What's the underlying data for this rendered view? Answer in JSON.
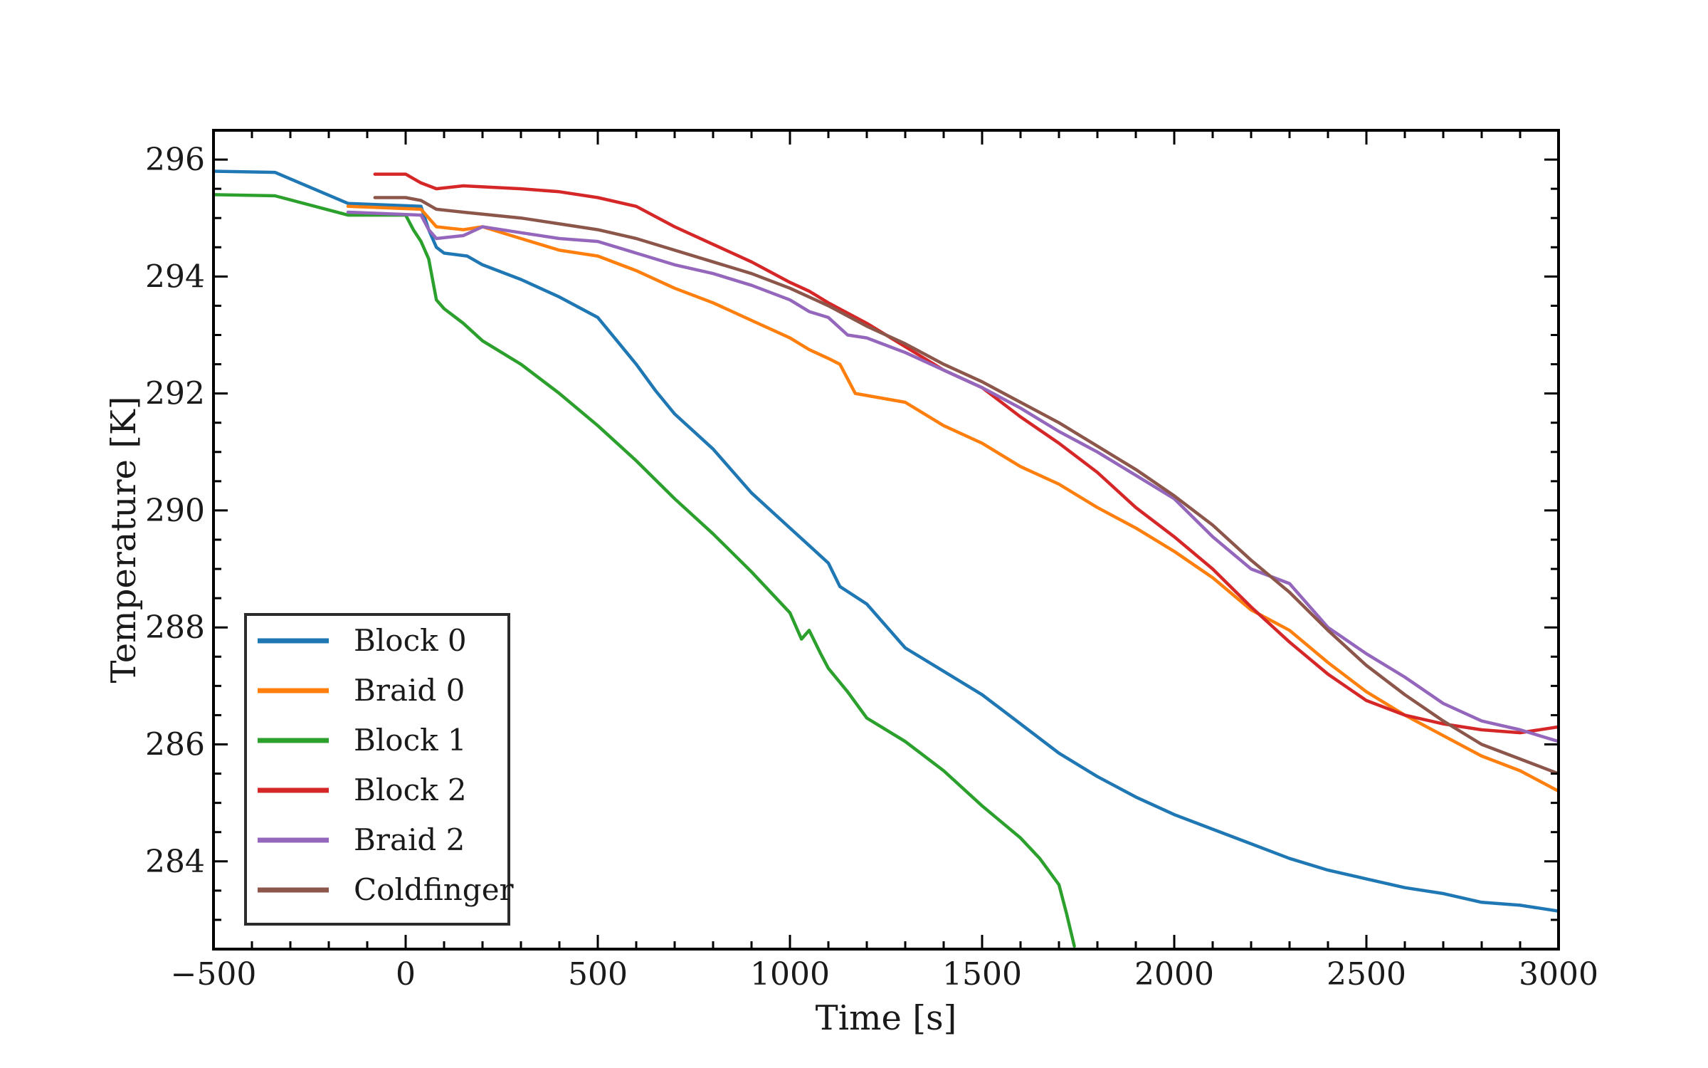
{
  "chart_data": {
    "type": "line",
    "title": "",
    "xlabel": "Time [s]",
    "ylabel": "Temperature [K]",
    "xlim": [
      -500,
      3000
    ],
    "ylim": [
      282.5,
      296.5
    ],
    "x_ticks": [
      -500,
      0,
      500,
      1000,
      1500,
      2000,
      2500,
      3000
    ],
    "x_tick_labels": [
      "−500",
      "0",
      "500",
      "1000",
      "1500",
      "2000",
      "2500",
      "3000"
    ],
    "y_ticks": [
      284,
      286,
      288,
      290,
      292,
      294,
      296
    ],
    "y_tick_labels": [
      "284",
      "286",
      "288",
      "290",
      "292",
      "294",
      "296"
    ],
    "grid": false,
    "legend_position": "bottom-left",
    "series": [
      {
        "name": "Block 0",
        "color": "#1f77b4",
        "points": [
          [
            -500,
            295.8
          ],
          [
            -340,
            295.78
          ],
          [
            -150,
            295.25
          ],
          [
            40,
            295.2
          ],
          [
            60,
            294.8
          ],
          [
            80,
            294.5
          ],
          [
            100,
            294.4
          ],
          [
            160,
            294.35
          ],
          [
            200,
            294.2
          ],
          [
            300,
            293.95
          ],
          [
            400,
            293.65
          ],
          [
            500,
            293.3
          ],
          [
            550,
            292.9
          ],
          [
            600,
            292.5
          ],
          [
            650,
            292.05
          ],
          [
            700,
            291.65
          ],
          [
            800,
            291.05
          ],
          [
            900,
            290.3
          ],
          [
            1000,
            289.7
          ],
          [
            1050,
            289.4
          ],
          [
            1100,
            289.1
          ],
          [
            1130,
            288.7
          ],
          [
            1200,
            288.4
          ],
          [
            1300,
            287.65
          ],
          [
            1400,
            287.25
          ],
          [
            1500,
            286.85
          ],
          [
            1600,
            286.35
          ],
          [
            1700,
            285.85
          ],
          [
            1800,
            285.45
          ],
          [
            1900,
            285.1
          ],
          [
            2000,
            284.8
          ],
          [
            2100,
            284.55
          ],
          [
            2200,
            284.3
          ],
          [
            2300,
            284.05
          ],
          [
            2400,
            283.85
          ],
          [
            2500,
            283.7
          ],
          [
            2600,
            283.55
          ],
          [
            2700,
            283.45
          ],
          [
            2800,
            283.3
          ],
          [
            2900,
            283.25
          ],
          [
            3000,
            283.15
          ]
        ]
      },
      {
        "name": "Braid 0",
        "color": "#ff7f0e",
        "points": [
          [
            -150,
            295.2
          ],
          [
            40,
            295.15
          ],
          [
            60,
            295.0
          ],
          [
            80,
            294.85
          ],
          [
            150,
            294.8
          ],
          [
            200,
            294.85
          ],
          [
            300,
            294.65
          ],
          [
            400,
            294.45
          ],
          [
            500,
            294.35
          ],
          [
            600,
            294.1
          ],
          [
            700,
            293.8
          ],
          [
            800,
            293.55
          ],
          [
            900,
            293.25
          ],
          [
            1000,
            292.95
          ],
          [
            1050,
            292.75
          ],
          [
            1100,
            292.6
          ],
          [
            1130,
            292.5
          ],
          [
            1170,
            292.0
          ],
          [
            1300,
            291.85
          ],
          [
            1400,
            291.45
          ],
          [
            1500,
            291.15
          ],
          [
            1600,
            290.75
          ],
          [
            1700,
            290.45
          ],
          [
            1800,
            290.05
          ],
          [
            1900,
            289.7
          ],
          [
            2000,
            289.3
          ],
          [
            2100,
            288.85
          ],
          [
            2200,
            288.3
          ],
          [
            2300,
            287.95
          ],
          [
            2400,
            287.4
          ],
          [
            2500,
            286.9
          ],
          [
            2600,
            286.5
          ],
          [
            2700,
            286.15
          ],
          [
            2800,
            285.8
          ],
          [
            2900,
            285.55
          ],
          [
            3000,
            285.2
          ]
        ]
      },
      {
        "name": "Block 1",
        "color": "#2ca02c",
        "points": [
          [
            -500,
            295.4
          ],
          [
            -340,
            295.38
          ],
          [
            -150,
            295.05
          ],
          [
            0,
            295.05
          ],
          [
            20,
            294.8
          ],
          [
            40,
            294.6
          ],
          [
            60,
            294.3
          ],
          [
            80,
            293.6
          ],
          [
            100,
            293.45
          ],
          [
            150,
            293.2
          ],
          [
            200,
            292.9
          ],
          [
            300,
            292.5
          ],
          [
            400,
            292.0
          ],
          [
            500,
            291.45
          ],
          [
            600,
            290.85
          ],
          [
            700,
            290.2
          ],
          [
            800,
            289.6
          ],
          [
            900,
            288.95
          ],
          [
            1000,
            288.25
          ],
          [
            1030,
            287.8
          ],
          [
            1050,
            287.95
          ],
          [
            1080,
            287.55
          ],
          [
            1100,
            287.3
          ],
          [
            1150,
            286.9
          ],
          [
            1200,
            286.45
          ],
          [
            1300,
            286.05
          ],
          [
            1400,
            285.55
          ],
          [
            1500,
            284.95
          ],
          [
            1600,
            284.4
          ],
          [
            1650,
            284.05
          ],
          [
            1700,
            283.6
          ],
          [
            1720,
            283.1
          ],
          [
            1740,
            282.55
          ]
        ]
      },
      {
        "name": "Block 2",
        "color": "#d62728",
        "points": [
          [
            -80,
            295.75
          ],
          [
            0,
            295.75
          ],
          [
            40,
            295.6
          ],
          [
            80,
            295.5
          ],
          [
            150,
            295.55
          ],
          [
            300,
            295.5
          ],
          [
            400,
            295.45
          ],
          [
            500,
            295.35
          ],
          [
            600,
            295.2
          ],
          [
            700,
            294.85
          ],
          [
            800,
            294.55
          ],
          [
            900,
            294.25
          ],
          [
            1000,
            293.9
          ],
          [
            1050,
            293.75
          ],
          [
            1100,
            293.55
          ],
          [
            1200,
            293.2
          ],
          [
            1300,
            292.8
          ],
          [
            1400,
            292.4
          ],
          [
            1500,
            292.1
          ],
          [
            1600,
            291.6
          ],
          [
            1700,
            291.15
          ],
          [
            1800,
            290.65
          ],
          [
            1900,
            290.05
          ],
          [
            2000,
            289.55
          ],
          [
            2100,
            289.0
          ],
          [
            2200,
            288.35
          ],
          [
            2300,
            287.75
          ],
          [
            2400,
            287.2
          ],
          [
            2500,
            286.75
          ],
          [
            2600,
            286.5
          ],
          [
            2700,
            286.35
          ],
          [
            2800,
            286.25
          ],
          [
            2900,
            286.2
          ],
          [
            3000,
            286.3
          ]
        ]
      },
      {
        "name": "Braid 2",
        "color": "#9467bd",
        "points": [
          [
            -150,
            295.1
          ],
          [
            40,
            295.05
          ],
          [
            60,
            294.8
          ],
          [
            80,
            294.65
          ],
          [
            150,
            294.7
          ],
          [
            200,
            294.85
          ],
          [
            300,
            294.75
          ],
          [
            400,
            294.65
          ],
          [
            500,
            294.6
          ],
          [
            600,
            294.4
          ],
          [
            700,
            294.2
          ],
          [
            800,
            294.05
          ],
          [
            900,
            293.85
          ],
          [
            1000,
            293.6
          ],
          [
            1050,
            293.4
          ],
          [
            1100,
            293.3
          ],
          [
            1150,
            293.0
          ],
          [
            1200,
            292.95
          ],
          [
            1300,
            292.7
          ],
          [
            1400,
            292.4
          ],
          [
            1500,
            292.1
          ],
          [
            1600,
            291.75
          ],
          [
            1700,
            291.35
          ],
          [
            1800,
            291.0
          ],
          [
            1900,
            290.6
          ],
          [
            2000,
            290.2
          ],
          [
            2100,
            289.55
          ],
          [
            2200,
            289.0
          ],
          [
            2300,
            288.75
          ],
          [
            2400,
            288.0
          ],
          [
            2500,
            287.55
          ],
          [
            2600,
            287.15
          ],
          [
            2700,
            286.7
          ],
          [
            2800,
            286.4
          ],
          [
            2900,
            286.25
          ],
          [
            3000,
            286.05
          ]
        ]
      },
      {
        "name": "Coldfinger",
        "color": "#8c564b",
        "points": [
          [
            -80,
            295.35
          ],
          [
            0,
            295.35
          ],
          [
            40,
            295.3
          ],
          [
            80,
            295.15
          ],
          [
            150,
            295.1
          ],
          [
            300,
            295.0
          ],
          [
            400,
            294.9
          ],
          [
            500,
            294.8
          ],
          [
            600,
            294.65
          ],
          [
            700,
            294.45
          ],
          [
            800,
            294.25
          ],
          [
            900,
            294.05
          ],
          [
            1000,
            293.8
          ],
          [
            1100,
            293.5
          ],
          [
            1200,
            293.15
          ],
          [
            1300,
            292.85
          ],
          [
            1400,
            292.5
          ],
          [
            1500,
            292.2
          ],
          [
            1600,
            291.85
          ],
          [
            1700,
            291.5
          ],
          [
            1800,
            291.1
          ],
          [
            1900,
            290.7
          ],
          [
            2000,
            290.25
          ],
          [
            2100,
            289.75
          ],
          [
            2200,
            289.15
          ],
          [
            2300,
            288.6
          ],
          [
            2400,
            287.95
          ],
          [
            2500,
            287.35
          ],
          [
            2600,
            286.85
          ],
          [
            2700,
            286.4
          ],
          [
            2800,
            286.0
          ],
          [
            2900,
            285.75
          ],
          [
            3000,
            285.5
          ]
        ]
      }
    ]
  }
}
